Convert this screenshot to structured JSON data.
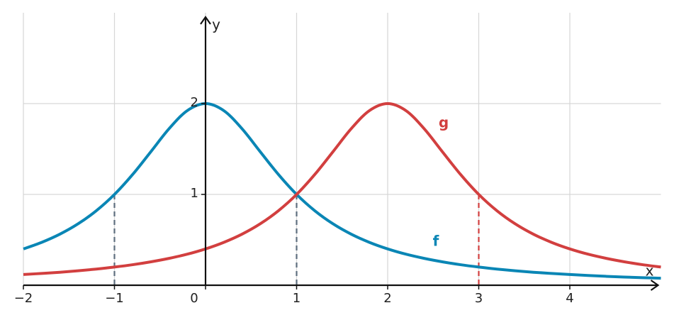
{
  "chart_data": {
    "type": "line",
    "x": [
      -2,
      -1.8,
      -1.6,
      -1.4,
      -1.2,
      -1,
      -0.8,
      -0.6,
      -0.4,
      -0.2,
      0,
      0.2,
      0.4,
      0.6,
      0.8,
      1,
      1.2,
      1.4,
      1.6,
      1.8,
      2,
      2.2,
      2.4,
      2.6,
      2.8,
      3,
      3.2,
      3.4,
      3.6,
      3.8,
      4,
      4.2,
      4.4,
      4.6,
      4.8,
      5
    ],
    "series": [
      {
        "name": "f",
        "color": "#0a86b5",
        "values": [
          0.4,
          0.472,
          0.562,
          0.676,
          0.82,
          1,
          1.22,
          1.471,
          1.724,
          1.923,
          2,
          1.923,
          1.724,
          1.471,
          1.22,
          1,
          0.82,
          0.676,
          0.562,
          0.472,
          0.4,
          0.342,
          0.296,
          0.258,
          0.226,
          0.2,
          0.178,
          0.159,
          0.143,
          0.13,
          0.118,
          0.107,
          0.098,
          0.09,
          0.083,
          0.077
        ]
      },
      {
        "name": "g",
        "color": "#d23f3f",
        "values": [
          0.118,
          0.13,
          0.143,
          0.159,
          0.178,
          0.2,
          0.226,
          0.258,
          0.296,
          0.342,
          0.4,
          0.472,
          0.562,
          0.676,
          0.82,
          1,
          1.22,
          1.471,
          1.724,
          1.923,
          2,
          1.923,
          1.724,
          1.471,
          1.22,
          1,
          0.82,
          0.676,
          0.562,
          0.472,
          0.4,
          0.342,
          0.296,
          0.258,
          0.226,
          0.2
        ]
      }
    ],
    "guides": [
      {
        "x": -1,
        "y": 1,
        "color": "#5f6f7f"
      },
      {
        "x": 1,
        "y": 1,
        "color": "#5f6f7f"
      },
      {
        "x": 3,
        "y": 1,
        "color": "#d23f3f"
      }
    ],
    "x_label": "x",
    "y_label": "y",
    "xlim": [
      -2,
      5
    ],
    "ylim": [
      0,
      3
    ],
    "xticks": [
      {
        "value": -2,
        "label": "−2"
      },
      {
        "value": -1,
        "label": "−1"
      },
      0,
      1,
      2,
      3,
      4
    ],
    "yticks": [
      1,
      2
    ],
    "grid": true
  }
}
